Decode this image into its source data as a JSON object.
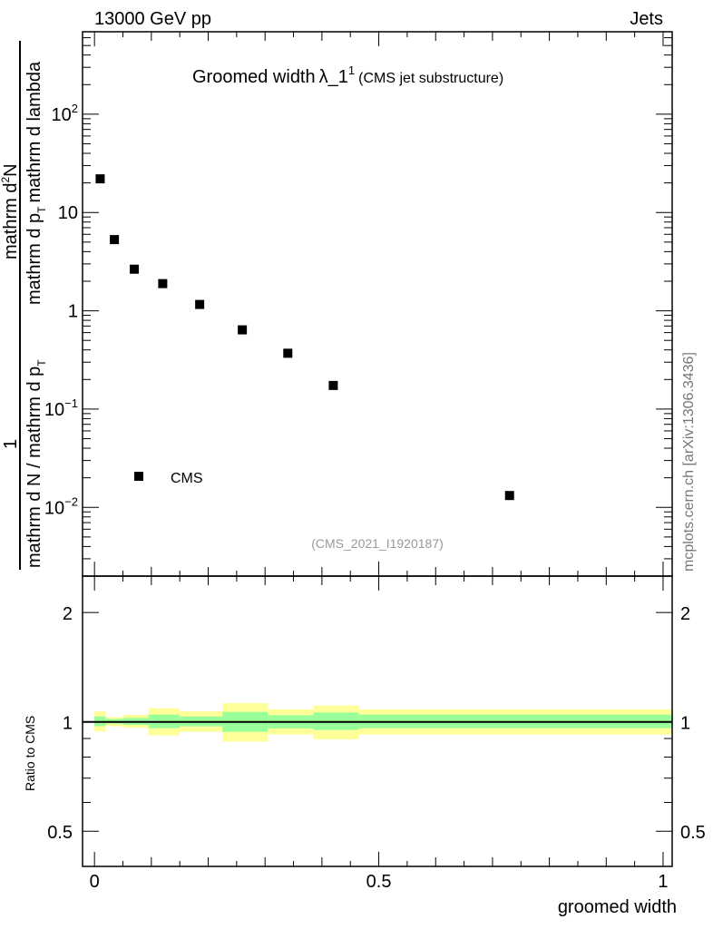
{
  "header": {
    "energy": "13000 GeV pp",
    "process": "Jets"
  },
  "side_label": "mcplots.cern.ch [arXiv:1306.3436]",
  "watermark": "(CMS_2021_I1920187)",
  "chart_data": [
    {
      "type": "scatter",
      "title": "Groomed width",
      "title_symbol": "λ_1",
      "title_sup": "1",
      "title_suffix": "(CMS jet substructure)",
      "ylabel_num1": "1",
      "ylabel_den1": "mathrm d N / mathrm d p",
      "ylabel_num2": "mathrm d",
      "ylabel_num2_sup": "2",
      "ylabel_num2_end": "N",
      "ylabel_den2": "mathrm d p",
      "ylabel_den2_end": "mathrm d lambda",
      "ylabel_sub": "T",
      "yscale": "log",
      "ylim": [
        0.002,
        690
      ],
      "xlim": [
        -0.021,
        1.016
      ],
      "yticks": [
        {
          "v": 0.01,
          "base": "10",
          "exp": "−2"
        },
        {
          "v": 0.1,
          "base": "10",
          "exp": "−1"
        },
        {
          "v": 1,
          "base": "1",
          "exp": ""
        },
        {
          "v": 10,
          "base": "10",
          "exp": ""
        },
        {
          "v": 100,
          "base": "10",
          "exp": "2"
        }
      ],
      "legend": {
        "label": "CMS",
        "placement": "lower-left"
      },
      "series": [
        {
          "name": "CMS",
          "x": [
            0.01,
            0.035,
            0.07,
            0.12,
            0.185,
            0.26,
            0.34,
            0.42,
            0.73
          ],
          "y": [
            22,
            5.3,
            2.65,
            1.89,
            1.16,
            0.64,
            0.37,
            0.174,
            0.0132
          ]
        }
      ]
    },
    {
      "type": "area",
      "ylabel": "Ratio to CMS",
      "xlabel": "groomed width",
      "yscale": "log",
      "ylim": [
        0.4,
        2.52
      ],
      "yticks": [
        {
          "v": 0.5,
          "label": "0.5"
        },
        {
          "v": 1,
          "label": "1"
        },
        {
          "v": 2,
          "label": "2"
        }
      ],
      "xticks": [
        {
          "v": 0,
          "label": "0"
        },
        {
          "v": 0.5,
          "label": "0.5"
        },
        {
          "v": 1,
          "label": "1"
        }
      ],
      "bin_edges": [
        0,
        0.02,
        0.05,
        0.095,
        0.15,
        0.225,
        0.305,
        0.385,
        0.465,
        1.0
      ],
      "yellow_band": {
        "up": [
          1.069,
          1.03,
          1.045,
          1.09,
          1.069,
          1.126,
          1.083,
          1.11,
          1.083
        ],
        "down": [
          0.941,
          0.973,
          0.963,
          0.918,
          0.939,
          0.883,
          0.923,
          0.895,
          0.923
        ]
      },
      "green_band": {
        "up": [
          1.035,
          1.019,
          1.025,
          1.047,
          1.035,
          1.065,
          1.043,
          1.061,
          1.047
        ],
        "down": [
          0.973,
          0.989,
          0.981,
          0.961,
          0.972,
          0.939,
          0.959,
          0.95,
          0.961
        ]
      },
      "colors": {
        "yellow": "#ffff99",
        "green": "#99ff99",
        "line": "#000000",
        "marker": "#000000"
      }
    }
  ]
}
